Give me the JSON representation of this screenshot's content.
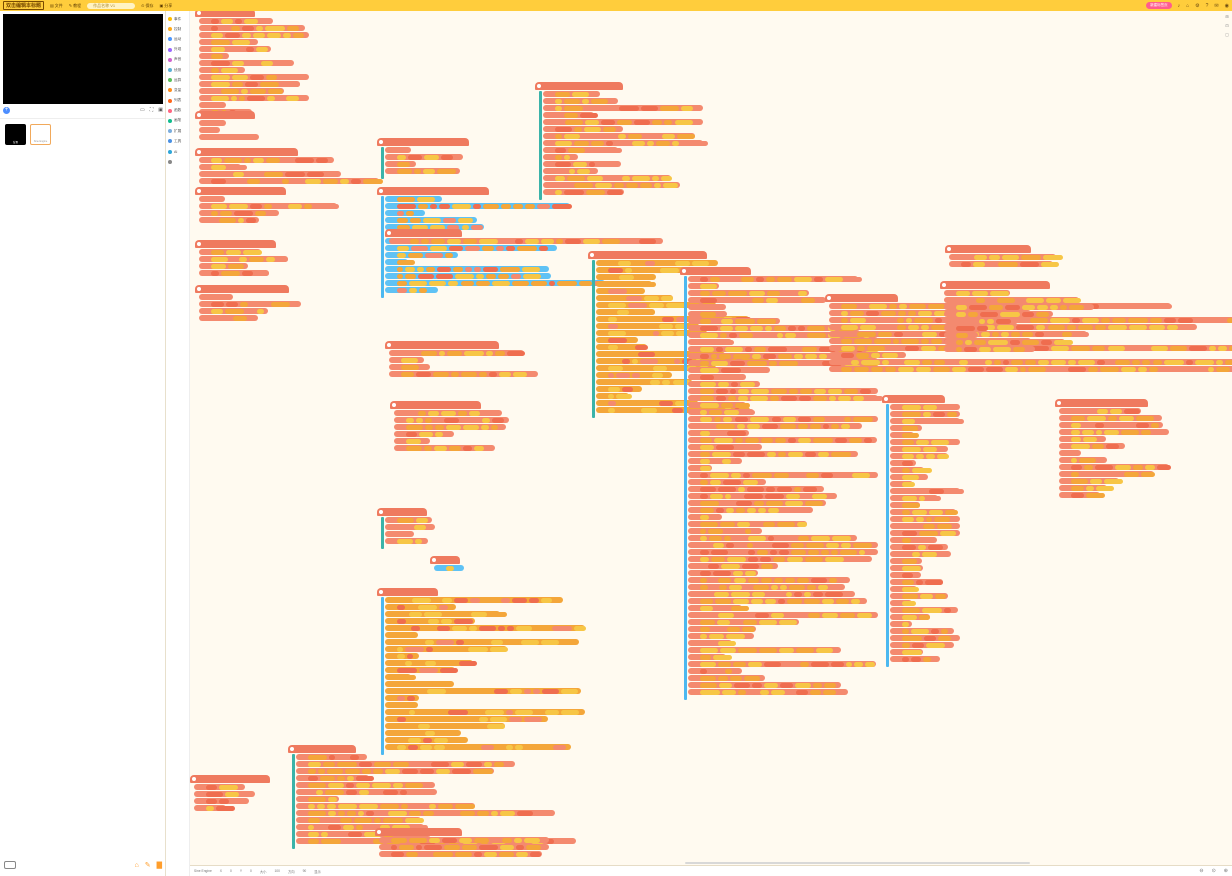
{
  "topbar": {
    "logo": "双击编辑本标题",
    "menu_file": "文件",
    "menu_tutorial": "教程",
    "project_placeholder": "作品名称 V1",
    "save": "保存",
    "share": "分享",
    "pink_button": "新建标签页",
    "icons": [
      "bell-icon",
      "bookmark-icon",
      "gear-icon",
      "help-icon",
      "chat-icon",
      "user-icon"
    ]
  },
  "stage": {
    "background": "#000000"
  },
  "sprites": [
    {
      "label": "背景"
    },
    {
      "label": "Sine Engine"
    }
  ],
  "categories": [
    {
      "label": "事件",
      "color": "#ffbf00"
    },
    {
      "label": "控制",
      "color": "#ffab19"
    },
    {
      "label": "运动",
      "color": "#4c97ff"
    },
    {
      "label": "外观",
      "color": "#9966ff"
    },
    {
      "label": "声音",
      "color": "#cf63cf"
    },
    {
      "label": "侦测",
      "color": "#5cb1d6"
    },
    {
      "label": "运算",
      "color": "#59c059"
    },
    {
      "label": "变量",
      "color": "#ff8c1a"
    },
    {
      "label": "列表",
      "color": "#ff661a"
    },
    {
      "label": "函数",
      "color": "#ff6680"
    },
    {
      "label": "画笔",
      "color": "#0fbd8c"
    },
    {
      "label": "扩展",
      "color": "#7aaddd"
    },
    {
      "label": "工具",
      "color": "#4a90e2"
    },
    {
      "label": "AI",
      "color": "#2ea6d8"
    },
    {
      "label": "",
      "color": "#888888"
    }
  ],
  "bottombar": {
    "sprite": "Sine Engine",
    "x_label": "X",
    "x_value": "0",
    "y_label": "Y",
    "y_value": "0",
    "size_label": "大小",
    "size_value": "100",
    "dir_label": "方向",
    "dir_value": "90",
    "extra": "显示"
  }
}
